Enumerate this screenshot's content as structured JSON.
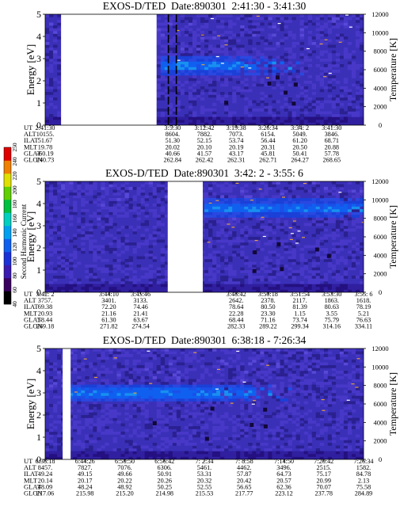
{
  "panels": [
    {
      "title_name": "EXOS-D/TED",
      "title_date": "Date:890301",
      "title_time": "2:41:30 - 3:41:30",
      "ylabel": "Energy [eV]",
      "y2label": "Temperature [K]",
      "ylim": [
        0,
        5
      ],
      "y2lim": [
        0,
        12000
      ],
      "yticks": [
        "0",
        "1",
        "2",
        "3",
        "4",
        "5"
      ],
      "y2ticks": [
        "0",
        "2000",
        "4000",
        "6000",
        "8000",
        "10000",
        "12000"
      ],
      "gaps": [
        [
          0.5,
          3.5
        ]
      ],
      "dashed_lines": [
        3.87,
        4.12
      ],
      "band": {
        "center": 2.7,
        "width": 0.9,
        "start": 3.6,
        "fade_end": 5.6
      },
      "rows": [
        {
          "name": "UT",
          "values": [
            "2:41:30",
            "3:5:30",
            "3:12:42",
            "3:19:38",
            "3:26:34",
            "3:34: 2",
            "3:41:30"
          ]
        },
        {
          "name": "ALT",
          "values": [
            "10155.",
            "8604.",
            "7882.",
            "7073.",
            "6154.",
            "5049.",
            "3846."
          ]
        },
        {
          "name": "ILAT",
          "values": [
            "51.67",
            "51.30",
            "52.15",
            "53.74",
            "56.44",
            "61.20",
            "68.71"
          ]
        },
        {
          "name": "MLT",
          "values": [
            "19.78",
            "20.02",
            "20.10",
            "20.19",
            "20.31",
            "20.50",
            "20.88"
          ]
        },
        {
          "name": "GLAT",
          "values": [
            "-60.19",
            "40.66",
            "41.57",
            "43.17",
            "45.81",
            "50.41",
            "57.78"
          ]
        },
        {
          "name": "GLON",
          "values": [
            "240.73",
            "262.84",
            "262.42",
            "262.31",
            "262.71",
            "264.27",
            "268.65"
          ]
        }
      ],
      "col_positions": [
        0,
        4,
        5,
        6,
        7,
        8,
        9
      ]
    },
    {
      "title_name": "EXOS-D/TED",
      "title_date": "Date:890301",
      "title_time": "3:42: 2 - 3:55: 6",
      "ylabel": "Energy [eV]",
      "y2label": "Temperature [K]",
      "ylim": [
        0,
        5
      ],
      "y2lim": [
        0,
        12000
      ],
      "yticks": [
        "0",
        "1",
        "2",
        "3",
        "4",
        "5"
      ],
      "y2ticks": [
        "0",
        "2000",
        "4000",
        "6000",
        "8000",
        "10000",
        "12000"
      ],
      "gaps": [
        [
          3.85,
          4.95
        ]
      ],
      "dashed_lines": [],
      "band": {
        "center": 3.8,
        "width": 0.8,
        "start": 5.0,
        "fade_end": 9.0
      },
      "rows": [
        {
          "name": "UT",
          "values": [
            "3:42: 2",
            "3:44:10",
            "3:45:46",
            "3:48:42",
            "3:50:18",
            "3:51:54",
            "3:53:30",
            "3:55: 6"
          ]
        },
        {
          "name": "ALT",
          "values": [
            "3757.",
            "3401.",
            "3133.",
            "2642.",
            "2378.",
            "2117.",
            "1863.",
            "1618."
          ]
        },
        {
          "name": "ILAT",
          "values": [
            "69.38",
            "72.20",
            "74.46",
            "78.64",
            "80.50",
            "81.39",
            "80.63",
            "78.19"
          ]
        },
        {
          "name": "MLT",
          "values": [
            "20.93",
            "21.16",
            "21.41",
            "22.28",
            "23.30",
            "1.15",
            "3.55",
            "5.21"
          ]
        },
        {
          "name": "GLAT",
          "values": [
            "58.44",
            "61.30",
            "63.67",
            "68.44",
            "71.16",
            "73.74",
            "75.79",
            "76.63"
          ]
        },
        {
          "name": "GLON",
          "values": [
            "269.18",
            "271.82",
            "274.54",
            "282.33",
            "289.22",
            "299.34",
            "314.16",
            "334.11"
          ]
        }
      ],
      "col_positions": [
        0,
        2,
        3,
        6,
        7,
        8,
        9,
        10
      ]
    },
    {
      "title_name": "EXOS-D/TED",
      "title_date": "Date:890301",
      "title_time": "6:38:18 - 7:26:34",
      "ylabel": "Energy [eV]",
      "y2label": "Temperature [K]",
      "ylim": [
        0,
        5
      ],
      "y2lim": [
        0,
        12000
      ],
      "yticks": [
        "0",
        "1",
        "2",
        "3",
        "4",
        "5"
      ],
      "y2ticks": [
        "0",
        "2000",
        "4000",
        "6000",
        "8000",
        "10000",
        "12000"
      ],
      "gaps": [
        [
          0.55,
          0.8
        ]
      ],
      "dashed_lines": [],
      "band": {
        "center": 3.0,
        "width": 0.8,
        "start": 0.8,
        "fade_end": 5.4
      },
      "rows": [
        {
          "name": "UT",
          "values": [
            "6:38:18",
            "6:44:26",
            "6:50:50",
            "6:56:42",
            "7: 2:34",
            "7: 8:58",
            "7:14:50",
            "7:20:42",
            "7:26:34"
          ]
        },
        {
          "name": "ALT",
          "values": [
            "8457.",
            "7827.",
            "7076.",
            "6306.",
            "5461.",
            "4462.",
            "3496.",
            "2515.",
            "1582."
          ]
        },
        {
          "name": "ILAT",
          "values": [
            "49.24",
            "49.15",
            "49.66",
            "50.91",
            "53.31",
            "57.87",
            "64.73",
            "75.17",
            "84.78"
          ]
        },
        {
          "name": "MLT",
          "values": [
            "20.14",
            "20.17",
            "20.22",
            "20.26",
            "20.32",
            "20.42",
            "20.57",
            "20.99",
            "2.13"
          ]
        },
        {
          "name": "GLAT",
          "values": [
            "48.09",
            "48.24",
            "48.92",
            "50.25",
            "52.55",
            "56.65",
            "62.36",
            "70.07",
            "75.58"
          ]
        },
        {
          "name": "GLON",
          "values": [
            "217.06",
            "215.98",
            "215.20",
            "214.98",
            "215.53",
            "217.77",
            "223.12",
            "237.78",
            "284.89"
          ]
        }
      ],
      "col_positions": [
        0,
        1.25,
        2.5,
        3.75,
        5,
        6.25,
        7.5,
        8.75,
        10
      ]
    }
  ],
  "colorbar": {
    "label": "Second Harmonic Current",
    "ticks": [
      "40",
      "60",
      "80",
      "100",
      "120",
      "140",
      "160",
      "180",
      "200",
      "220",
      "240",
      "250"
    ],
    "colors": [
      "#000000",
      "#3a0060",
      "#3a1ab0",
      "#1a30d8",
      "#1060f0",
      "#00a0f0",
      "#00d0c0",
      "#00c040",
      "#60d000",
      "#e0e000",
      "#f08000",
      "#e00000"
    ]
  },
  "chart_data": [
    {
      "type": "heatmap",
      "title": "EXOS-D/TED Date:890301 2:41:30 - 3:41:30",
      "xlabel": "UT",
      "ylabel": "Energy [eV]",
      "y2label": "Temperature [K]",
      "ylim": [
        0,
        5
      ],
      "y2lim": [
        0,
        12000
      ]
    },
    {
      "type": "heatmap",
      "title": "EXOS-D/TED Date:890301 3:42: 2 - 3:55: 6",
      "xlabel": "UT",
      "ylabel": "Energy [eV]",
      "y2label": "Temperature [K]",
      "ylim": [
        0,
        5
      ],
      "y2lim": [
        0,
        12000
      ]
    },
    {
      "type": "heatmap",
      "title": "EXOS-D/TED Date:890301 6:38:18 - 7:26:34",
      "xlabel": "UT",
      "ylabel": "Energy [eV]",
      "y2label": "Temperature [K]",
      "ylim": [
        0,
        5
      ],
      "y2lim": [
        0,
        12000
      ]
    }
  ]
}
